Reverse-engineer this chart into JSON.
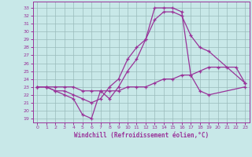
{
  "xlabel": "Windchill (Refroidissement éolien,°C)",
  "bg_color": "#c8e8e8",
  "line_color": "#993399",
  "grid_color": "#99bbbb",
  "x_ticks": [
    0,
    1,
    2,
    3,
    4,
    5,
    6,
    7,
    8,
    9,
    10,
    11,
    12,
    13,
    14,
    15,
    16,
    17,
    18,
    19,
    20,
    21,
    22,
    23
  ],
  "y_ticks": [
    19,
    20,
    21,
    22,
    23,
    24,
    25,
    26,
    27,
    28,
    29,
    30,
    31,
    32,
    33
  ],
  "ylim": [
    18.5,
    33.8
  ],
  "xlim": [
    -0.5,
    23.5
  ],
  "series_x1": [
    0,
    1,
    2,
    3,
    4,
    5,
    6,
    7,
    8,
    9,
    10,
    11,
    12,
    13,
    14,
    15,
    16,
    17,
    18,
    19,
    23
  ],
  "series_y1": [
    23.0,
    23.0,
    22.5,
    22.0,
    21.5,
    19.5,
    19.0,
    22.5,
    21.5,
    23.0,
    25.0,
    26.5,
    29.0,
    33.0,
    33.0,
    33.0,
    32.5,
    24.5,
    22.5,
    22.0,
    23.0
  ],
  "series_x2": [
    0,
    1,
    2,
    3,
    4,
    5,
    6,
    7,
    8,
    9,
    10,
    11,
    12,
    13,
    14,
    15,
    16,
    17,
    18,
    19,
    23
  ],
  "series_y2": [
    23.0,
    23.0,
    22.5,
    22.5,
    22.0,
    21.5,
    21.0,
    21.5,
    23.0,
    24.0,
    26.5,
    28.0,
    29.0,
    31.5,
    32.5,
    32.5,
    32.0,
    29.5,
    28.0,
    27.5,
    23.5
  ],
  "series_x3": [
    0,
    1,
    2,
    3,
    4,
    5,
    6,
    7,
    8,
    9,
    10,
    11,
    12,
    13,
    14,
    15,
    16,
    17,
    18,
    19,
    20,
    21,
    22,
    23
  ],
  "series_y3": [
    23.0,
    23.0,
    23.0,
    23.0,
    23.0,
    22.5,
    22.5,
    22.5,
    22.5,
    22.5,
    23.0,
    23.0,
    23.0,
    23.5,
    24.0,
    24.0,
    24.5,
    24.5,
    25.0,
    25.5,
    25.5,
    25.5,
    25.5,
    23.5
  ]
}
